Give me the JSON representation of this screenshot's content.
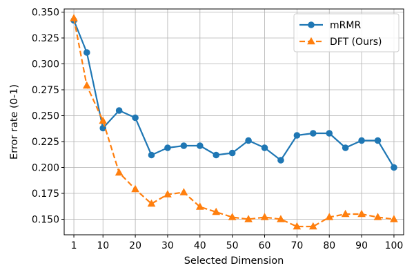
{
  "chart_data": {
    "type": "line",
    "xlabel": "Selected Dimension",
    "ylabel": "Error rate (0-1)",
    "x": [
      1,
      5,
      10,
      15,
      20,
      25,
      30,
      35,
      40,
      45,
      50,
      55,
      60,
      65,
      70,
      75,
      80,
      85,
      90,
      95,
      100
    ],
    "xlim": [
      -2,
      103
    ],
    "ylim": [
      0.135,
      0.353
    ],
    "xticks": [
      1,
      10,
      20,
      30,
      40,
      50,
      60,
      70,
      80,
      90,
      100
    ],
    "xtick_labels": [
      "1",
      "10",
      "20",
      "30",
      "40",
      "50",
      "60",
      "70",
      "80",
      "90",
      "100"
    ],
    "yticks": [
      0.15,
      0.175,
      0.2,
      0.225,
      0.25,
      0.275,
      0.3,
      0.325,
      0.35
    ],
    "ytick_labels": [
      "0.150",
      "0.175",
      "0.200",
      "0.225",
      "0.250",
      "0.275",
      "0.300",
      "0.325",
      "0.350"
    ],
    "grid": true,
    "legend_position": "top-right",
    "series": [
      {
        "name": "mRMR",
        "color": "#1f77b4",
        "line_style": "solid",
        "marker": "circle",
        "values": [
          0.342,
          0.311,
          0.238,
          0.255,
          0.248,
          0.212,
          0.219,
          0.221,
          0.221,
          0.212,
          0.214,
          0.226,
          0.219,
          0.207,
          0.231,
          0.233,
          0.233,
          0.219,
          0.226,
          0.226,
          0.2
        ]
      },
      {
        "name": "DFT (Ours)",
        "color": "#ff7f0e",
        "line_style": "dashed",
        "marker": "triangle",
        "values": [
          0.344,
          0.279,
          0.245,
          0.195,
          0.179,
          0.165,
          0.174,
          0.176,
          0.162,
          0.157,
          0.152,
          0.15,
          0.152,
          0.15,
          0.143,
          0.143,
          0.152,
          0.155,
          0.155,
          0.152,
          0.15
        ]
      }
    ]
  }
}
